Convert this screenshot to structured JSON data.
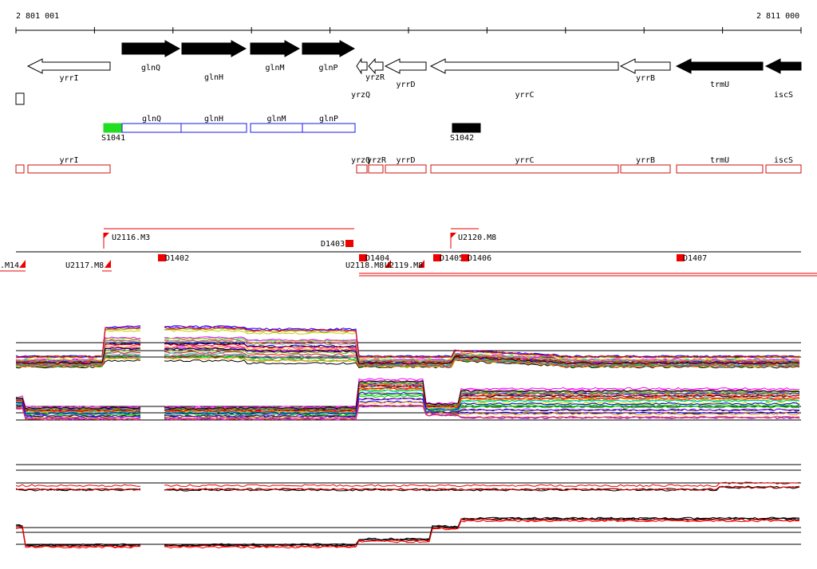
{
  "coords": {
    "start": "2 801 001",
    "end": "2 811 000"
  },
  "genes": [
    {
      "name": "yrrI",
      "strand": "-",
      "fill": "#ffffff",
      "row": "top",
      "labelRow": "below"
    },
    {
      "name": "glnQ",
      "strand": "+",
      "fill": "#000000",
      "row": "top",
      "labelRow": "below"
    },
    {
      "name": "glnH",
      "strand": "+",
      "fill": "#000000",
      "row": "top",
      "labelRow": "below2"
    },
    {
      "name": "glnM",
      "strand": "+",
      "fill": "#000000",
      "row": "top",
      "labelRow": "below"
    },
    {
      "name": "glnP",
      "strand": "+",
      "fill": "#000000",
      "row": "top",
      "labelRow": "below"
    },
    {
      "name": "yrzQ",
      "strand": "-",
      "fill": "#ffffff",
      "row": "top",
      "labelRow": "below3"
    },
    {
      "name": "yrzR",
      "strand": "-",
      "fill": "#ffffff",
      "row": "top",
      "labelRow": "below"
    },
    {
      "name": "yrrD",
      "strand": "-",
      "fill": "#ffffff",
      "row": "top",
      "labelRow": "below2"
    },
    {
      "name": "yrrC",
      "strand": "-",
      "fill": "#ffffff",
      "row": "top",
      "labelRow": "below3"
    },
    {
      "name": "yrrB",
      "strand": "-",
      "fill": "#ffffff",
      "row": "top",
      "labelRow": "below"
    },
    {
      "name": "trmU",
      "strand": "-",
      "fill": "#000000",
      "row": "top",
      "labelRow": "below2"
    },
    {
      "name": "iscS",
      "strand": "-",
      "fill": "#000000",
      "row": "top",
      "labelRow": "below3"
    }
  ],
  "features": [
    {
      "name": "S1041",
      "color": "#22dd22"
    },
    {
      "name": "glnQ",
      "color": "#1a1aee"
    },
    {
      "name": "glnH",
      "color": "#1a1aee"
    },
    {
      "name": "glnM",
      "color": "#1a1aee"
    },
    {
      "name": "glnP",
      "color": "#1a1aee"
    },
    {
      "name": "S1042",
      "color": "#000000"
    }
  ],
  "redFeatures": [
    "yrrI",
    "yrzQ",
    "yrzR",
    "yrrD",
    "yrrC",
    "yrrB",
    "trmU",
    "iscS"
  ],
  "upMarkers": [
    "U2116.M3",
    "U2120.M8",
    ".M14",
    "U2117.M8",
    "U2118.M8",
    "U2119.M8"
  ],
  "downMarkers": [
    "D1403",
    "D1402",
    "D1404",
    "D1405",
    "D1406",
    "D1407"
  ],
  "colors": {
    "gene_stroke": "#000000",
    "feature_red": "#cc1111",
    "marker_red": "#ee0000"
  },
  "expression": {
    "palette": [
      "#000000",
      "#ff0000",
      "#00cc00",
      "#0000ff",
      "#ff00ff",
      "#00cccc",
      "#cccc00",
      "#ff8800",
      "#8800ff",
      "#888888",
      "#66aa00",
      "#cc3366"
    ]
  }
}
